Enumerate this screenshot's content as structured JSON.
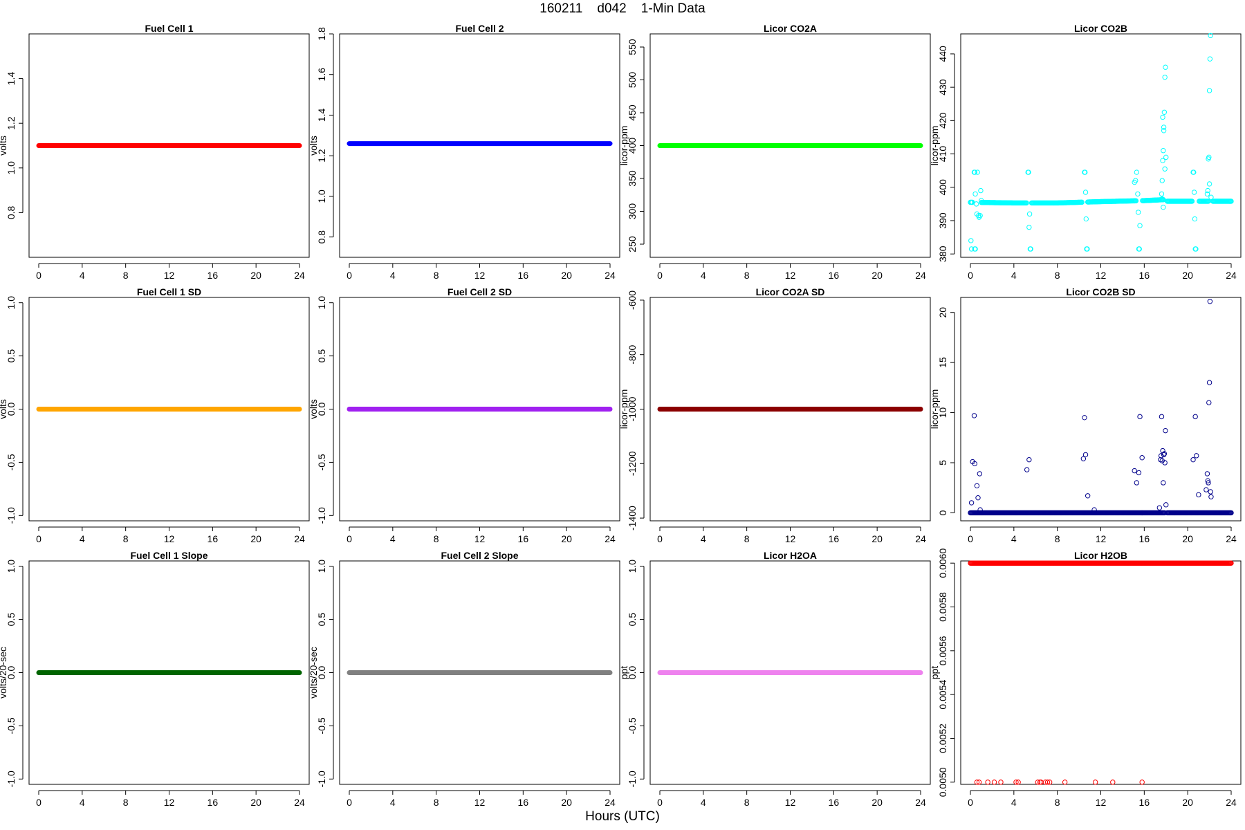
{
  "header": {
    "title": "160211    d042    1-Min Data"
  },
  "footer": {
    "xlabel": "Hours (UTC)"
  },
  "chart_data": [
    {
      "id": "fuel-cell-1",
      "title": "Fuel Cell 1",
      "type": "scatter",
      "ylabel": "volts",
      "color": "#ff0000",
      "marker": "line",
      "xlim": [
        0,
        24
      ],
      "xticks": [
        0,
        4,
        8,
        12,
        16,
        20,
        24
      ],
      "ylim": [
        0.6,
        1.6
      ],
      "yticks": [
        0.8,
        1.0,
        1.2,
        1.4
      ],
      "ytick_labels": [
        "0.8",
        "1.0",
        "1.2",
        "1.4"
      ],
      "series": [
        {
          "x": [
            0,
            24
          ],
          "y": [
            1.1,
            1.1
          ]
        }
      ]
    },
    {
      "id": "fuel-cell-2",
      "title": "Fuel Cell 2",
      "type": "scatter",
      "ylabel": "volts",
      "color": "#0000ff",
      "marker": "line",
      "xlim": [
        0,
        24
      ],
      "xticks": [
        0,
        4,
        8,
        12,
        16,
        20,
        24
      ],
      "ylim": [
        0.7,
        1.8
      ],
      "yticks": [
        0.8,
        1.0,
        1.2,
        1.4,
        1.6,
        1.8
      ],
      "ytick_labels": [
        "0.8",
        "1.0",
        "1.2",
        "1.4",
        "1.6",
        "1.8"
      ],
      "series": [
        {
          "x": [
            0,
            24
          ],
          "y": [
            1.26,
            1.26
          ]
        }
      ]
    },
    {
      "id": "licor-co2a",
      "title": "Licor CO2A",
      "type": "scatter",
      "ylabel": "licor-ppm",
      "color": "#00ff00",
      "marker": "line",
      "xlim": [
        0,
        24
      ],
      "xticks": [
        0,
        4,
        8,
        12,
        16,
        20,
        24
      ],
      "ylim": [
        230,
        570
      ],
      "yticks": [
        250,
        300,
        350,
        400,
        450,
        500,
        550
      ],
      "ytick_labels": [
        "250",
        "300",
        "350",
        "400",
        "450",
        "500",
        "550"
      ],
      "series": [
        {
          "x": [
            0,
            24
          ],
          "y": [
            400,
            400
          ]
        }
      ]
    },
    {
      "id": "licor-co2b",
      "title": "Licor CO2B",
      "type": "scatter",
      "ylabel": "licor-ppm",
      "color": "#00ffff",
      "marker": "circle",
      "xlim": [
        0,
        24
      ],
      "xticks": [
        0,
        4,
        8,
        12,
        16,
        20,
        24
      ],
      "ylim": [
        379,
        446
      ],
      "yticks": [
        380,
        390,
        400,
        410,
        420,
        430,
        440
      ],
      "ytick_labels": [
        "380",
        "390",
        "400",
        "410",
        "420",
        "430",
        "440"
      ],
      "series": [
        {
          "baseline": [
            [
              0,
              395.5
            ],
            [
              4,
              395.3
            ],
            [
              8,
              395.3
            ],
            [
              12,
              395.7
            ],
            [
              16,
              396.0
            ],
            [
              17.9,
              396.3
            ],
            [
              18.1,
              395.8
            ],
            [
              24,
              395.8
            ]
          ],
          "baseline_gaps": [
            [
              0.2,
              1.0
            ],
            [
              5.2,
              5.6
            ],
            [
              10.3,
              10.8
            ],
            [
              15.3,
              15.8
            ],
            [
              17.8,
              18.1
            ],
            [
              20.4,
              21.0
            ],
            [
              21.9,
              22.3
            ]
          ],
          "x": [
            0.05,
            0.1,
            0.35,
            0.45,
            0.4,
            0.55,
            0.6,
            0.75,
            0.8,
            0.9,
            0.95,
            1.0,
            0.65,
            0.45,
            0.4,
            5.3,
            5.35,
            5.4,
            5.45,
            5.5,
            5.55,
            10.5,
            10.55,
            10.6,
            10.65,
            10.7,
            10.75,
            15.1,
            15.2,
            15.3,
            15.4,
            15.45,
            15.5,
            15.55,
            15.6,
            17.6,
            17.65,
            17.7,
            17.75,
            17.8,
            17.85,
            17.9,
            17.95,
            18.0,
            17.7,
            17.8,
            17.9,
            17.65,
            17.75,
            20.5,
            20.55,
            20.6,
            20.65,
            20.7,
            20.75,
            21.8,
            21.85,
            21.9,
            21.95,
            22.0,
            22.05,
            22.1,
            22.15,
            22.0
          ],
          "y": [
            384,
            381.5,
            404.5,
            398,
            381.5,
            395,
            392,
            391.5,
            391,
            391.5,
            399,
            396,
            404.5,
            381.5,
            404.5,
            404.5,
            404.5,
            388,
            392,
            381.5,
            381.5,
            404.5,
            404.5,
            398.5,
            390.5,
            381.5,
            381.5,
            401.5,
            402,
            404.5,
            398,
            392.5,
            381.5,
            381.5,
            388.5,
            398,
            402,
            408,
            411,
            418,
            422.5,
            433,
            436,
            409,
            421,
            417,
            405.5,
            396.5,
            394,
            404.5,
            404.5,
            398.5,
            390.5,
            381.5,
            381.5,
            398,
            399,
            408.5,
            409,
            429,
            438.5,
            445.5,
            397,
            401
          ]
        }
      ]
    },
    {
      "id": "fuel-cell-1-sd",
      "title": "Fuel Cell 1 SD",
      "type": "scatter",
      "ylabel": "volts",
      "color": "#ffa500",
      "marker": "line",
      "xlim": [
        0,
        24
      ],
      "xticks": [
        0,
        4,
        8,
        12,
        16,
        20,
        24
      ],
      "ylim": [
        -1.05,
        1.05
      ],
      "yticks": [
        -1.0,
        -0.5,
        0.0,
        0.5,
        1.0
      ],
      "ytick_labels": [
        "-1.0",
        "-0.5",
        "0.0",
        "0.5",
        "1.0"
      ],
      "series": [
        {
          "x": [
            0,
            24
          ],
          "y": [
            0,
            0
          ]
        }
      ]
    },
    {
      "id": "fuel-cell-2-sd",
      "title": "Fuel Cell 2 SD",
      "type": "scatter",
      "ylabel": "volts",
      "color": "#a020f0",
      "marker": "line",
      "xlim": [
        0,
        24
      ],
      "xticks": [
        0,
        4,
        8,
        12,
        16,
        20,
        24
      ],
      "ylim": [
        -1.05,
        1.05
      ],
      "yticks": [
        -1.0,
        -0.5,
        0.0,
        0.5,
        1.0
      ],
      "ytick_labels": [
        "-1.0",
        "-0.5",
        "0.0",
        "0.5",
        "1.0"
      ],
      "series": [
        {
          "x": [
            0,
            24
          ],
          "y": [
            0,
            0
          ]
        }
      ]
    },
    {
      "id": "licor-co2a-sd",
      "title": "Licor CO2A SD",
      "type": "scatter",
      "ylabel": "licor-ppm",
      "color": "#8b0000",
      "marker": "line",
      "xlim": [
        0,
        24
      ],
      "xticks": [
        0,
        4,
        8,
        12,
        16,
        20,
        24
      ],
      "ylim": [
        -1410,
        -590
      ],
      "yticks": [
        -1400,
        -1200,
        -1000,
        -800,
        -600
      ],
      "ytick_labels": [
        "-1400",
        "-1200",
        "-1000",
        "-800",
        "-600"
      ],
      "series": [
        {
          "x": [
            0,
            24
          ],
          "y": [
            -1000,
            -1000
          ]
        }
      ]
    },
    {
      "id": "licor-co2b-sd",
      "title": "Licor CO2B SD",
      "type": "scatter",
      "ylabel": "licor-ppm",
      "color": "#00008b",
      "marker": "circle",
      "xlim": [
        0,
        24
      ],
      "xticks": [
        0,
        4,
        8,
        12,
        16,
        20,
        24
      ],
      "ylim": [
        -0.8,
        21.5
      ],
      "yticks": [
        0,
        5,
        10,
        15,
        20
      ],
      "ytick_labels": [
        "0",
        "5",
        "10",
        "15",
        "20"
      ],
      "series": [
        {
          "baseline": [
            [
              0,
              0
            ],
            [
              24,
              0
            ]
          ],
          "baseline_gaps": [
            [
              17.9,
              18.1
            ]
          ],
          "x": [
            0.1,
            0.2,
            0.35,
            0.4,
            0.6,
            0.7,
            0.85,
            0.9,
            5.2,
            5.4,
            10.4,
            10.5,
            10.6,
            10.8,
            11.4,
            15.1,
            15.3,
            15.5,
            15.6,
            15.8,
            17.4,
            17.5,
            17.55,
            17.6,
            17.65,
            17.7,
            17.75,
            17.8,
            17.85,
            17.9,
            17.95,
            18.0,
            20.5,
            20.7,
            20.8,
            21.0,
            21.7,
            21.8,
            21.85,
            21.9,
            21.95,
            22.0,
            22.05,
            22.1,
            22.15
          ],
          "y": [
            1.0,
            5.1,
            9.7,
            4.9,
            2.7,
            1.5,
            3.9,
            0.3,
            4.3,
            5.3,
            5.4,
            9.5,
            5.8,
            1.7,
            0.3,
            4.2,
            3.0,
            4.0,
            9.6,
            5.5,
            0.5,
            5.3,
            5.7,
            9.6,
            5.2,
            6.2,
            3.0,
            5.8,
            5.9,
            5.0,
            8.2,
            0.8,
            5.3,
            9.6,
            5.7,
            1.8,
            2.3,
            3.9,
            3.2,
            3.0,
            11.0,
            13.0,
            21.1,
            2.1,
            1.6
          ]
        }
      ]
    },
    {
      "id": "fuel-cell-1-slope",
      "title": "Fuel Cell 1 Slope",
      "type": "scatter",
      "ylabel": "volts/20-sec",
      "color": "#006400",
      "marker": "line",
      "xlim": [
        0,
        24
      ],
      "xticks": [
        0,
        4,
        8,
        12,
        16,
        20,
        24
      ],
      "ylim": [
        -1.05,
        1.05
      ],
      "yticks": [
        -1.0,
        -0.5,
        0.0,
        0.5,
        1.0
      ],
      "ytick_labels": [
        "-1.0",
        "-0.5",
        "0.0",
        "0.5",
        "1.0"
      ],
      "series": [
        {
          "x": [
            0,
            24
          ],
          "y": [
            0,
            0
          ]
        }
      ]
    },
    {
      "id": "fuel-cell-2-slope",
      "title": "Fuel Cell 2 Slope",
      "type": "scatter",
      "ylabel": "volts/20-sec",
      "color": "#808080",
      "marker": "line",
      "xlim": [
        0,
        24
      ],
      "xticks": [
        0,
        4,
        8,
        12,
        16,
        20,
        24
      ],
      "ylim": [
        -1.05,
        1.05
      ],
      "yticks": [
        -1.0,
        -0.5,
        0.0,
        0.5,
        1.0
      ],
      "ytick_labels": [
        "-1.0",
        "-0.5",
        "0.0",
        "0.5",
        "1.0"
      ],
      "series": [
        {
          "x": [
            0,
            24
          ],
          "y": [
            0,
            0
          ]
        }
      ]
    },
    {
      "id": "licor-h2oa",
      "title": "Licor H2OA",
      "type": "scatter",
      "ylabel": "ppt",
      "color": "#ee82ee",
      "marker": "line",
      "xlim": [
        0,
        24
      ],
      "xticks": [
        0,
        4,
        8,
        12,
        16,
        20,
        24
      ],
      "ylim": [
        -1.05,
        1.05
      ],
      "yticks": [
        -1.0,
        -0.5,
        0.0,
        0.5,
        1.0
      ],
      "ytick_labels": [
        "-1.0",
        "-0.5",
        "0.0",
        "0.5",
        "1.0"
      ],
      "series": [
        {
          "x": [
            0,
            24
          ],
          "y": [
            0,
            0
          ]
        }
      ]
    },
    {
      "id": "licor-h2ob",
      "title": "Licor H2OB",
      "type": "scatter",
      "ylabel": "ppt",
      "color": "#ff0000",
      "marker": "circle",
      "xlim": [
        0,
        24
      ],
      "xticks": [
        0,
        4,
        8,
        12,
        16,
        20,
        24
      ],
      "ylim": [
        0.00499,
        0.00601
      ],
      "yticks": [
        0.005,
        0.0052,
        0.0054,
        0.0056,
        0.0058,
        0.006
      ],
      "ytick_labels": [
        "0.0050",
        "0.0052",
        "0.0054",
        "0.0056",
        "0.0058",
        "0.0060"
      ],
      "series": [
        {
          "baseline": [
            [
              0,
              0.006
            ],
            [
              24,
              0.006
            ]
          ],
          "baseline_gaps": [],
          "x": [
            0.6,
            0.8,
            1.6,
            2.2,
            2.8,
            4.2,
            4.4,
            6.2,
            6.4,
            6.5,
            6.9,
            7.1,
            7.3,
            8.7,
            11.5,
            13.1,
            15.8
          ],
          "y": [
            0.005,
            0.005,
            0.005,
            0.005,
            0.005,
            0.005,
            0.005,
            0.005,
            0.005,
            0.005,
            0.005,
            0.005,
            0.005,
            0.005,
            0.005,
            0.005,
            0.005
          ]
        }
      ]
    }
  ]
}
